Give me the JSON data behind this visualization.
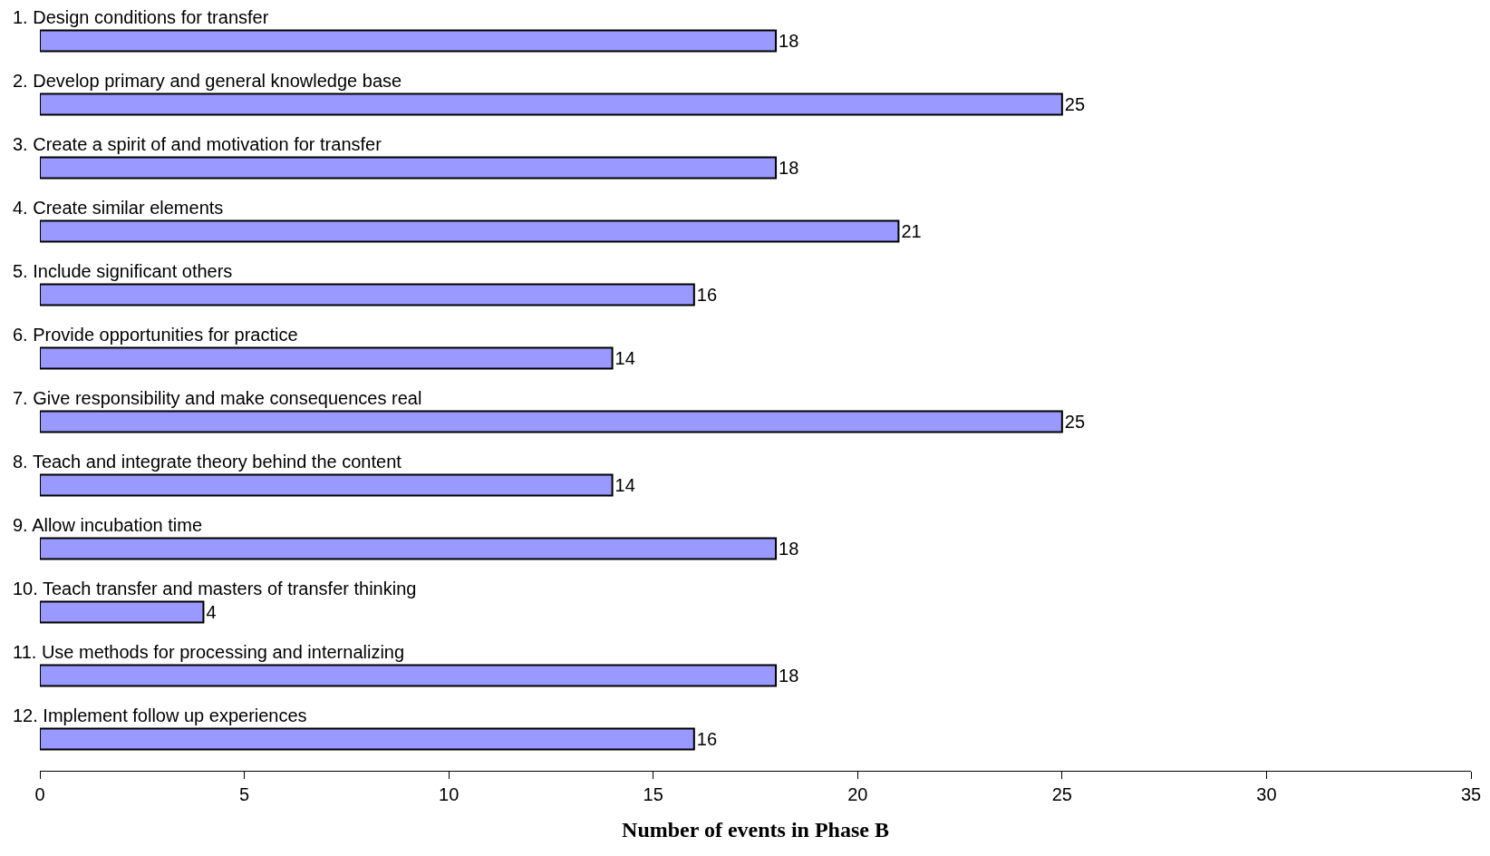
{
  "chart_data": {
    "type": "bar",
    "orientation": "horizontal",
    "xlabel": "Number of events in Phase B",
    "categories": [
      "1. Design conditions for transfer",
      "2. Develop primary and general knowledge base",
      "3. Create a spirit of and motivation for transfer",
      "4. Create similar elements",
      "5. Include significant others",
      "6. Provide opportunities for practice",
      "7. Give responsibility and make consequences real",
      "8. Teach and integrate theory behind the content",
      "9. Allow incubation time",
      "10. Teach transfer and masters of transfer thinking",
      "11. Use methods for processing and internalizing",
      "12. Implement follow up experiences"
    ],
    "values": [
      18,
      25,
      18,
      21,
      16,
      14,
      25,
      14,
      18,
      4,
      18,
      16
    ],
    "color": "#9999ff",
    "xlim": [
      0,
      35
    ],
    "xticks": [
      0,
      5,
      10,
      15,
      20,
      25,
      30,
      35
    ],
    "data_labels": true
  }
}
